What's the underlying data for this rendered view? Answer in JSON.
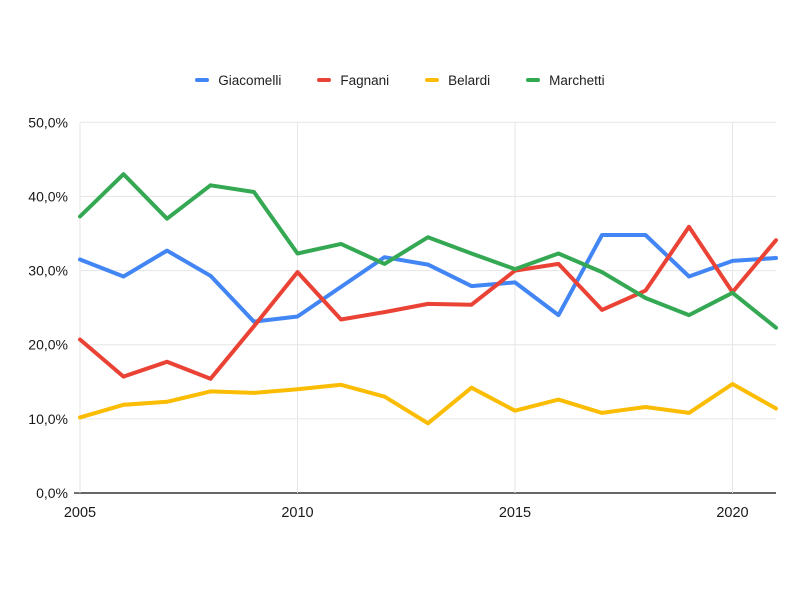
{
  "chart_data": {
    "type": "line",
    "title": "",
    "xlabel": "",
    "ylabel": "",
    "x": [
      2005,
      2006,
      2007,
      2008,
      2009,
      2010,
      2011,
      2012,
      2013,
      2014,
      2015,
      2016,
      2017,
      2018,
      2019,
      2020,
      2021
    ],
    "series": [
      {
        "name": "Giacomelli",
        "color": "#4285F4",
        "values": [
          31.5,
          29.2,
          32.7,
          29.3,
          23.1,
          23.8,
          27.8,
          31.8,
          30.8,
          27.9,
          28.4,
          24.0,
          34.8,
          34.8,
          29.2,
          31.3,
          31.7
        ]
      },
      {
        "name": "Fagnani",
        "color": "#EA4335",
        "values": [
          20.7,
          15.7,
          17.7,
          15.4,
          22.5,
          29.8,
          23.4,
          24.4,
          25.5,
          25.4,
          30.0,
          30.9,
          24.7,
          27.3,
          35.9,
          27.1,
          34.1
        ]
      },
      {
        "name": "Belardi",
        "color": "#FBBC04",
        "values": [
          10.2,
          11.9,
          12.3,
          13.7,
          13.5,
          14.0,
          14.6,
          13.0,
          9.4,
          14.2,
          11.1,
          12.6,
          10.8,
          11.6,
          10.8,
          14.7,
          11.4
        ]
      },
      {
        "name": "Marchetti",
        "color": "#34A853",
        "values": [
          37.3,
          43.0,
          37.0,
          41.5,
          40.6,
          32.3,
          33.6,
          30.9,
          34.5,
          32.3,
          30.2,
          32.3,
          29.8,
          26.3,
          24.0,
          27.0,
          22.3
        ]
      }
    ],
    "ylim": [
      0,
      50
    ],
    "y_tick_values": [
      0,
      10,
      20,
      30,
      40,
      50
    ],
    "y_tick_labels": [
      "0,0%",
      "10,0%",
      "20,0%",
      "30,0%",
      "40,0%",
      "50,0%"
    ],
    "x_tick_values": [
      2005,
      2010,
      2015,
      2020
    ],
    "x_tick_labels": [
      "2005",
      "2010",
      "2015",
      "2020"
    ],
    "legend_position": "top",
    "grid": true,
    "colors": {
      "gridline": "#e6e6e6",
      "baseline": "#333333",
      "axis_text": "#1a1a1a",
      "legend_text": "#202124",
      "background": "#ffffff"
    }
  }
}
